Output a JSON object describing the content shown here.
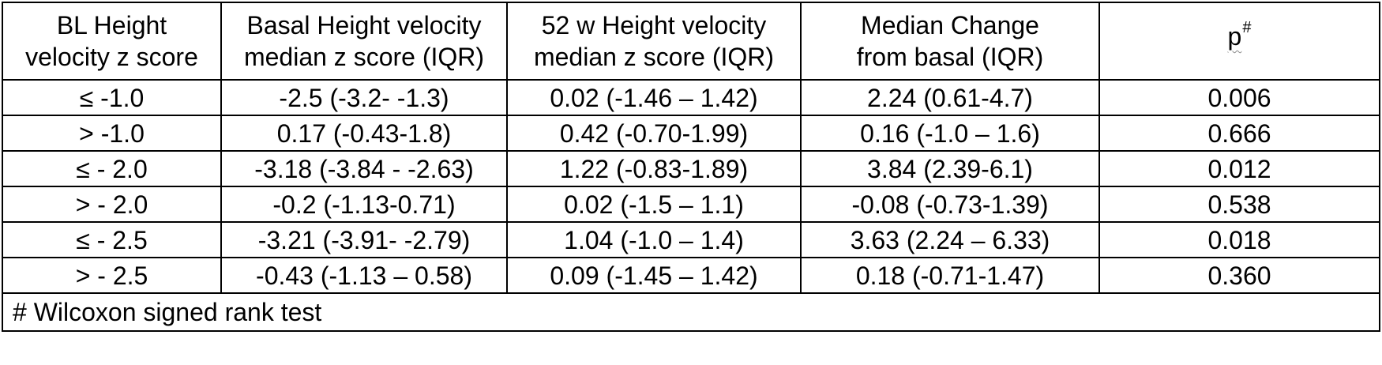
{
  "table": {
    "headers": [
      {
        "line1": "BL Height",
        "line2": "velocity z score"
      },
      {
        "line1": "Basal Height velocity",
        "line2": "median z score (IQR)"
      },
      {
        "line1": "52 w Height velocity",
        "line2": "median z score (IQR)"
      },
      {
        "line1": "Median Change",
        "line2": "from basal (IQR)"
      },
      {
        "text": "p",
        "superscript": "#"
      }
    ],
    "rows": [
      [
        "≤ -1.0",
        "-2.5 (-3.2- -1.3)",
        "0.02 (-1.46 – 1.42)",
        "2.24 (0.61-4.7)",
        "0.006"
      ],
      [
        "> -1.0",
        "0.17 (-0.43-1.8)",
        "0.42 (-0.70-1.99)",
        "0.16 (-1.0 – 1.6)",
        "0.666"
      ],
      [
        "≤ - 2.0",
        "-3.18 (-3.84 - -2.63)",
        "1.22 (-0.83-1.89)",
        "3.84 (2.39-6.1)",
        "0.012"
      ],
      [
        "> - 2.0",
        "-0.2 (-1.13-0.71)",
        "0.02 (-1.5 – 1.1)",
        "-0.08 (-0.73-1.39)",
        "0.538"
      ],
      [
        "≤ - 2.5",
        "-3.21 (-3.91- -2.79)",
        "1.04 (-1.0 – 1.4)",
        "3.63 (2.24 – 6.33)",
        "0.018"
      ],
      [
        "> - 2.5",
        "-0.43 (-1.13 – 0.58)",
        "0.09 (-1.45 – 1.42)",
        "0.18 (-0.71-1.47)",
        "0.360"
      ]
    ],
    "footnote": "# Wilcoxon signed rank test"
  }
}
